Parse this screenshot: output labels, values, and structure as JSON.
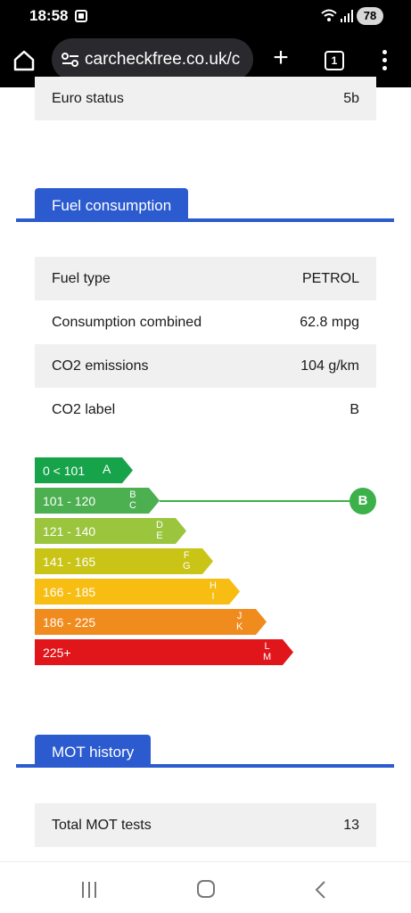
{
  "status": {
    "time": "18:58",
    "battery": "78"
  },
  "browser": {
    "url": "carcheckfree.co.uk/c",
    "tab_count": "1"
  },
  "vehicle_rows_top": [
    {
      "label": "Euro status",
      "value": "5b"
    }
  ],
  "sections": {
    "fuel": "Fuel consumption",
    "mot": "MOT history"
  },
  "fuel_rows": [
    {
      "label": "Fuel type",
      "value": "PETROL"
    },
    {
      "label": "Consumption combined",
      "value": "62.8 mpg"
    },
    {
      "label": "CO2 emissions",
      "value": "104 g/km"
    },
    {
      "label": "CO2 label",
      "value": "B"
    }
  ],
  "co2_bands": [
    {
      "range": "0 < 101",
      "letters": [
        "A"
      ],
      "color": "#16a34a"
    },
    {
      "range": "101 - 120",
      "letters": [
        "B",
        "C"
      ],
      "color": "#4caf50"
    },
    {
      "range": "121 - 140",
      "letters": [
        "D",
        "E"
      ],
      "color": "#9bc53d"
    },
    {
      "range": "141 - 165",
      "letters": [
        "F",
        "G"
      ],
      "color": "#c9c416"
    },
    {
      "range": "166 - 185",
      "letters": [
        "H",
        "I"
      ],
      "color": "#f7bd12"
    },
    {
      "range": "186 - 225",
      "letters": [
        "J",
        "K"
      ],
      "color": "#f08b1e"
    },
    {
      "range": "225+",
      "letters": [
        "L",
        "M"
      ],
      "color": "#e0161b"
    }
  ],
  "co2_marker": {
    "label": "B",
    "band_index": 1,
    "color": "#3cb14a"
  },
  "mot_rows": [
    {
      "label": "Total MOT tests",
      "value": "13"
    }
  ]
}
